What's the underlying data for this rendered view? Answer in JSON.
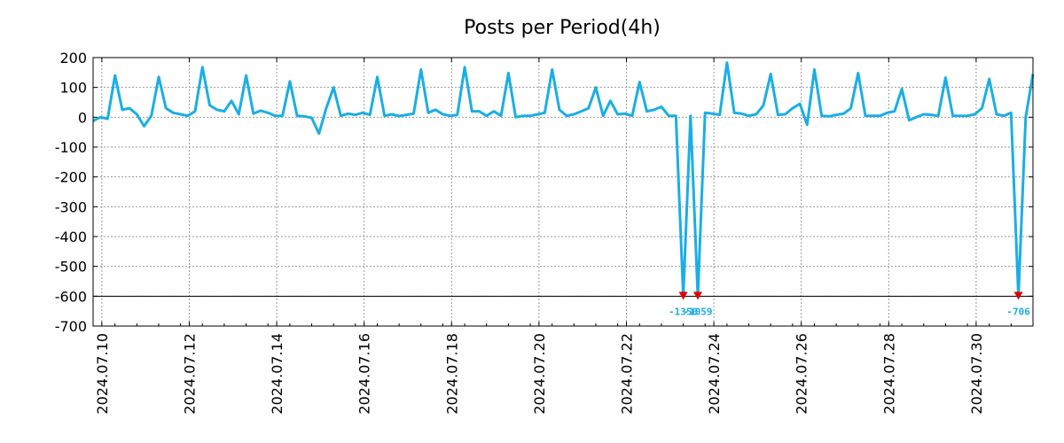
{
  "chart_data": {
    "type": "line",
    "title": "Posts per Period(4h)",
    "xlabel": "",
    "ylabel": "",
    "ylim": [
      -700,
      200
    ],
    "display_floor": -600,
    "grid": true,
    "x_range_days": [
      0,
      21.5
    ],
    "y_ticks": [
      "200",
      "100",
      "0",
      "-100",
      "-200",
      "-300",
      "-400",
      "-500",
      "-600",
      "-700"
    ],
    "y_tick_values": [
      200,
      100,
      0,
      -100,
      -200,
      -300,
      -400,
      -500,
      -600,
      -700
    ],
    "x_tick_labels": [
      "2024.07.10",
      "2024.07.12",
      "2024.07.14",
      "2024.07.16",
      "2024.07.18",
      "2024.07.20",
      "2024.07.22",
      "2024.07.24",
      "2024.07.26",
      "2024.07.28",
      "2024.07.30"
    ],
    "x_tick_days": [
      0.2,
      2.2,
      4.2,
      6.2,
      8.2,
      10.2,
      12.2,
      14.2,
      16.2,
      18.2,
      20.2
    ],
    "series": [
      {
        "name": "Posts",
        "color": "#1aaee6",
        "x": [
          0,
          0.167,
          0.333,
          0.5,
          0.667,
          0.833,
          1.0,
          1.167,
          1.333,
          1.5,
          1.667,
          1.833,
          2.0,
          2.167,
          2.333,
          2.5,
          2.667,
          2.833,
          3.0,
          3.167,
          3.333,
          3.5,
          3.667,
          3.833,
          4.0,
          4.167,
          4.333,
          4.5,
          4.667,
          4.833,
          5.0,
          5.167,
          5.333,
          5.5,
          5.667,
          5.833,
          6.0,
          6.167,
          6.333,
          6.5,
          6.667,
          6.833,
          7.0,
          7.167,
          7.333,
          7.5,
          7.667,
          7.833,
          8.0,
          8.167,
          8.333,
          8.5,
          8.667,
          8.833,
          9.0,
          9.167,
          9.333,
          9.5,
          9.667,
          9.833,
          10.0,
          10.167,
          10.333,
          10.5,
          10.667,
          10.833,
          11.0,
          11.167,
          11.333,
          11.5,
          11.667,
          11.833,
          12.0,
          12.167,
          12.333,
          12.5,
          12.667,
          12.833,
          13.0,
          13.167,
          13.333,
          13.5,
          13.667,
          13.833,
          14.0,
          14.167,
          14.333,
          14.5,
          14.667,
          14.833,
          15.0,
          15.167,
          15.333,
          15.5,
          15.667,
          15.833,
          16.0,
          16.167,
          16.333,
          16.5,
          16.667,
          16.833,
          17.0,
          17.167,
          17.333,
          17.5,
          17.667,
          17.833,
          18.0,
          18.167,
          18.333,
          18.5,
          18.667,
          18.833,
          19.0,
          19.167,
          19.333,
          19.5,
          19.667,
          19.833,
          20.0,
          20.167,
          20.333,
          20.5,
          20.667,
          20.833,
          21.0,
          21.167,
          21.333,
          21.5
        ],
        "values": [
          -12,
          0,
          -5,
          140,
          25,
          30,
          10,
          -30,
          5,
          135,
          30,
          15,
          10,
          5,
          20,
          168,
          40,
          25,
          20,
          55,
          10,
          140,
          12,
          22,
          15,
          5,
          5,
          120,
          5,
          3,
          -2,
          -55,
          30,
          100,
          5,
          12,
          8,
          15,
          8,
          135,
          5,
          10,
          4,
          8,
          12,
          160,
          15,
          25,
          10,
          5,
          8,
          168,
          20,
          20,
          5,
          20,
          5,
          148,
          0,
          5,
          5,
          10,
          15,
          160,
          25,
          5,
          10,
          20,
          30,
          100,
          5,
          55,
          10,
          12,
          5,
          118,
          20,
          25,
          35,
          5,
          5,
          -1350,
          5,
          -1059,
          15,
          12,
          8,
          183,
          15,
          12,
          5,
          10,
          40,
          145,
          8,
          10,
          30,
          45,
          -25,
          160,
          5,
          3,
          8,
          12,
          30,
          148,
          5,
          5,
          5,
          15,
          20,
          95,
          -10,
          0,
          10,
          8,
          5,
          133,
          5,
          5,
          5,
          10,
          30,
          128,
          10,
          5,
          15,
          -706,
          0,
          145
        ]
      }
    ],
    "clipped_labels": [
      {
        "index": 81,
        "text": "-1350"
      },
      {
        "index": 83,
        "text": "-1059"
      },
      {
        "index": 127,
        "text": "-706"
      }
    ]
  },
  "colors": {
    "line": "#1aaee6",
    "marker": "#e00000",
    "grid": "#999999",
    "axis": "#000000"
  }
}
